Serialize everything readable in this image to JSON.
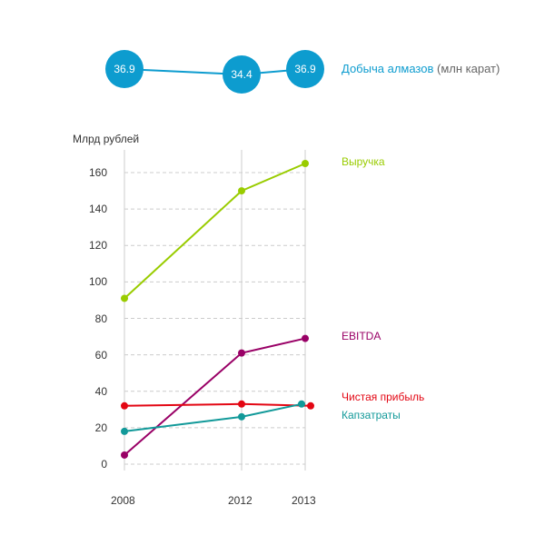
{
  "diamonds": {
    "label": "Добыча алмазов",
    "unit": "(млн карат)",
    "values": [
      36.9,
      34.4,
      36.9
    ],
    "labels": [
      "36.9",
      "34.4",
      "36.9"
    ],
    "color": "#0d9ccf"
  },
  "chart_data": {
    "type": "line",
    "ylabel": "Млрд рублей",
    "x": [
      2008,
      2012,
      2013
    ],
    "x_tick_labels": [
      "2008",
      "2012",
      "2013"
    ],
    "ylim": [
      0,
      170
    ],
    "y_ticks": [
      0,
      20,
      40,
      60,
      80,
      100,
      120,
      140,
      160
    ],
    "y_tick_labels": [
      "0",
      "20",
      "40",
      "60",
      "80",
      "100",
      "120",
      "140",
      "160"
    ],
    "grid": true,
    "legend": "right, next to series ends",
    "series": [
      {
        "name": "Выручка",
        "values": [
          91,
          150,
          165
        ],
        "color": "#99cc00"
      },
      {
        "name": "EBITDA",
        "values": [
          5,
          61,
          69
        ],
        "color": "#990066"
      },
      {
        "name": "Чистая прибыль",
        "values": [
          32,
          33,
          32
        ],
        "color": "#e30613"
      },
      {
        "name": "Капзатраты",
        "values": [
          18,
          26,
          33
        ],
        "color": "#119999"
      }
    ]
  }
}
